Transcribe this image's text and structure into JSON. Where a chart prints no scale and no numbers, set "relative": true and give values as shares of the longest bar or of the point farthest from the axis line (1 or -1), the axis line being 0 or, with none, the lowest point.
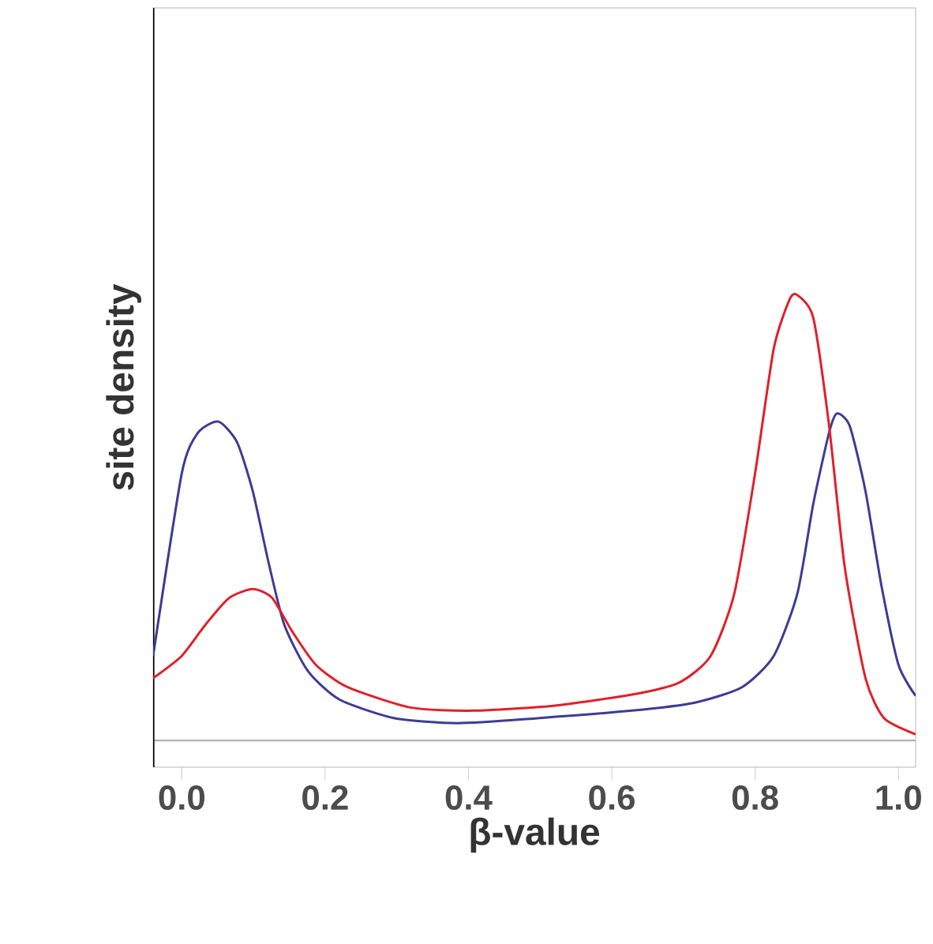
{
  "chart_data": {
    "type": "line",
    "relative": true,
    "xlabel": "β-value",
    "ylabel": "site density",
    "xlim": [
      -0.04,
      1.024
    ],
    "xticks": [
      {
        "value": 0,
        "label": "0.0"
      },
      {
        "value": 0.2,
        "label": "0.2"
      },
      {
        "value": 0.4,
        "label": "0.4"
      },
      {
        "value": 0.6,
        "label": "0.6"
      },
      {
        "value": 0.8,
        "label": "0.8"
      },
      {
        "value": 1.0,
        "label": "1.0"
      }
    ],
    "grid": false,
    "marker": "none",
    "line_style": "solid",
    "series": [
      {
        "color": "#3c3c96",
        "x": [
          -0.04,
          0,
          0.022,
          0.051,
          0.077,
          0.099,
          0.121,
          0.143,
          0.176,
          0.22,
          0.297,
          0.385,
          0.496,
          0.628,
          0.716,
          0.782,
          0.826,
          0.859,
          0.881,
          0.903,
          0.914,
          0.932,
          0.954,
          0.976,
          1.0,
          1.024
        ],
        "values": [
          0.19,
          0.6,
          0.69,
          0.716,
          0.67,
          0.56,
          0.4,
          0.26,
          0.156,
          0.092,
          0.05,
          0.039,
          0.05,
          0.067,
          0.085,
          0.12,
          0.19,
          0.33,
          0.53,
          0.69,
          0.734,
          0.706,
          0.56,
          0.35,
          0.17,
          0.1
        ]
      },
      {
        "color": "#e0202a",
        "x": [
          -0.04,
          0,
          0.033,
          0.066,
          0.099,
          0.126,
          0.154,
          0.187,
          0.231,
          0.319,
          0.407,
          0.518,
          0.628,
          0.694,
          0.738,
          0.771,
          0.8,
          0.826,
          0.848,
          0.859,
          0.881,
          0.903,
          0.925,
          0.954,
          0.98,
          1.024
        ],
        "values": [
          0.14,
          0.19,
          0.26,
          0.32,
          0.34,
          0.32,
          0.245,
          0.17,
          0.12,
          0.074,
          0.067,
          0.078,
          0.103,
          0.13,
          0.19,
          0.33,
          0.6,
          0.88,
          0.99,
          1.0,
          0.95,
          0.71,
          0.39,
          0.14,
          0.05,
          0.014
        ]
      }
    ]
  }
}
